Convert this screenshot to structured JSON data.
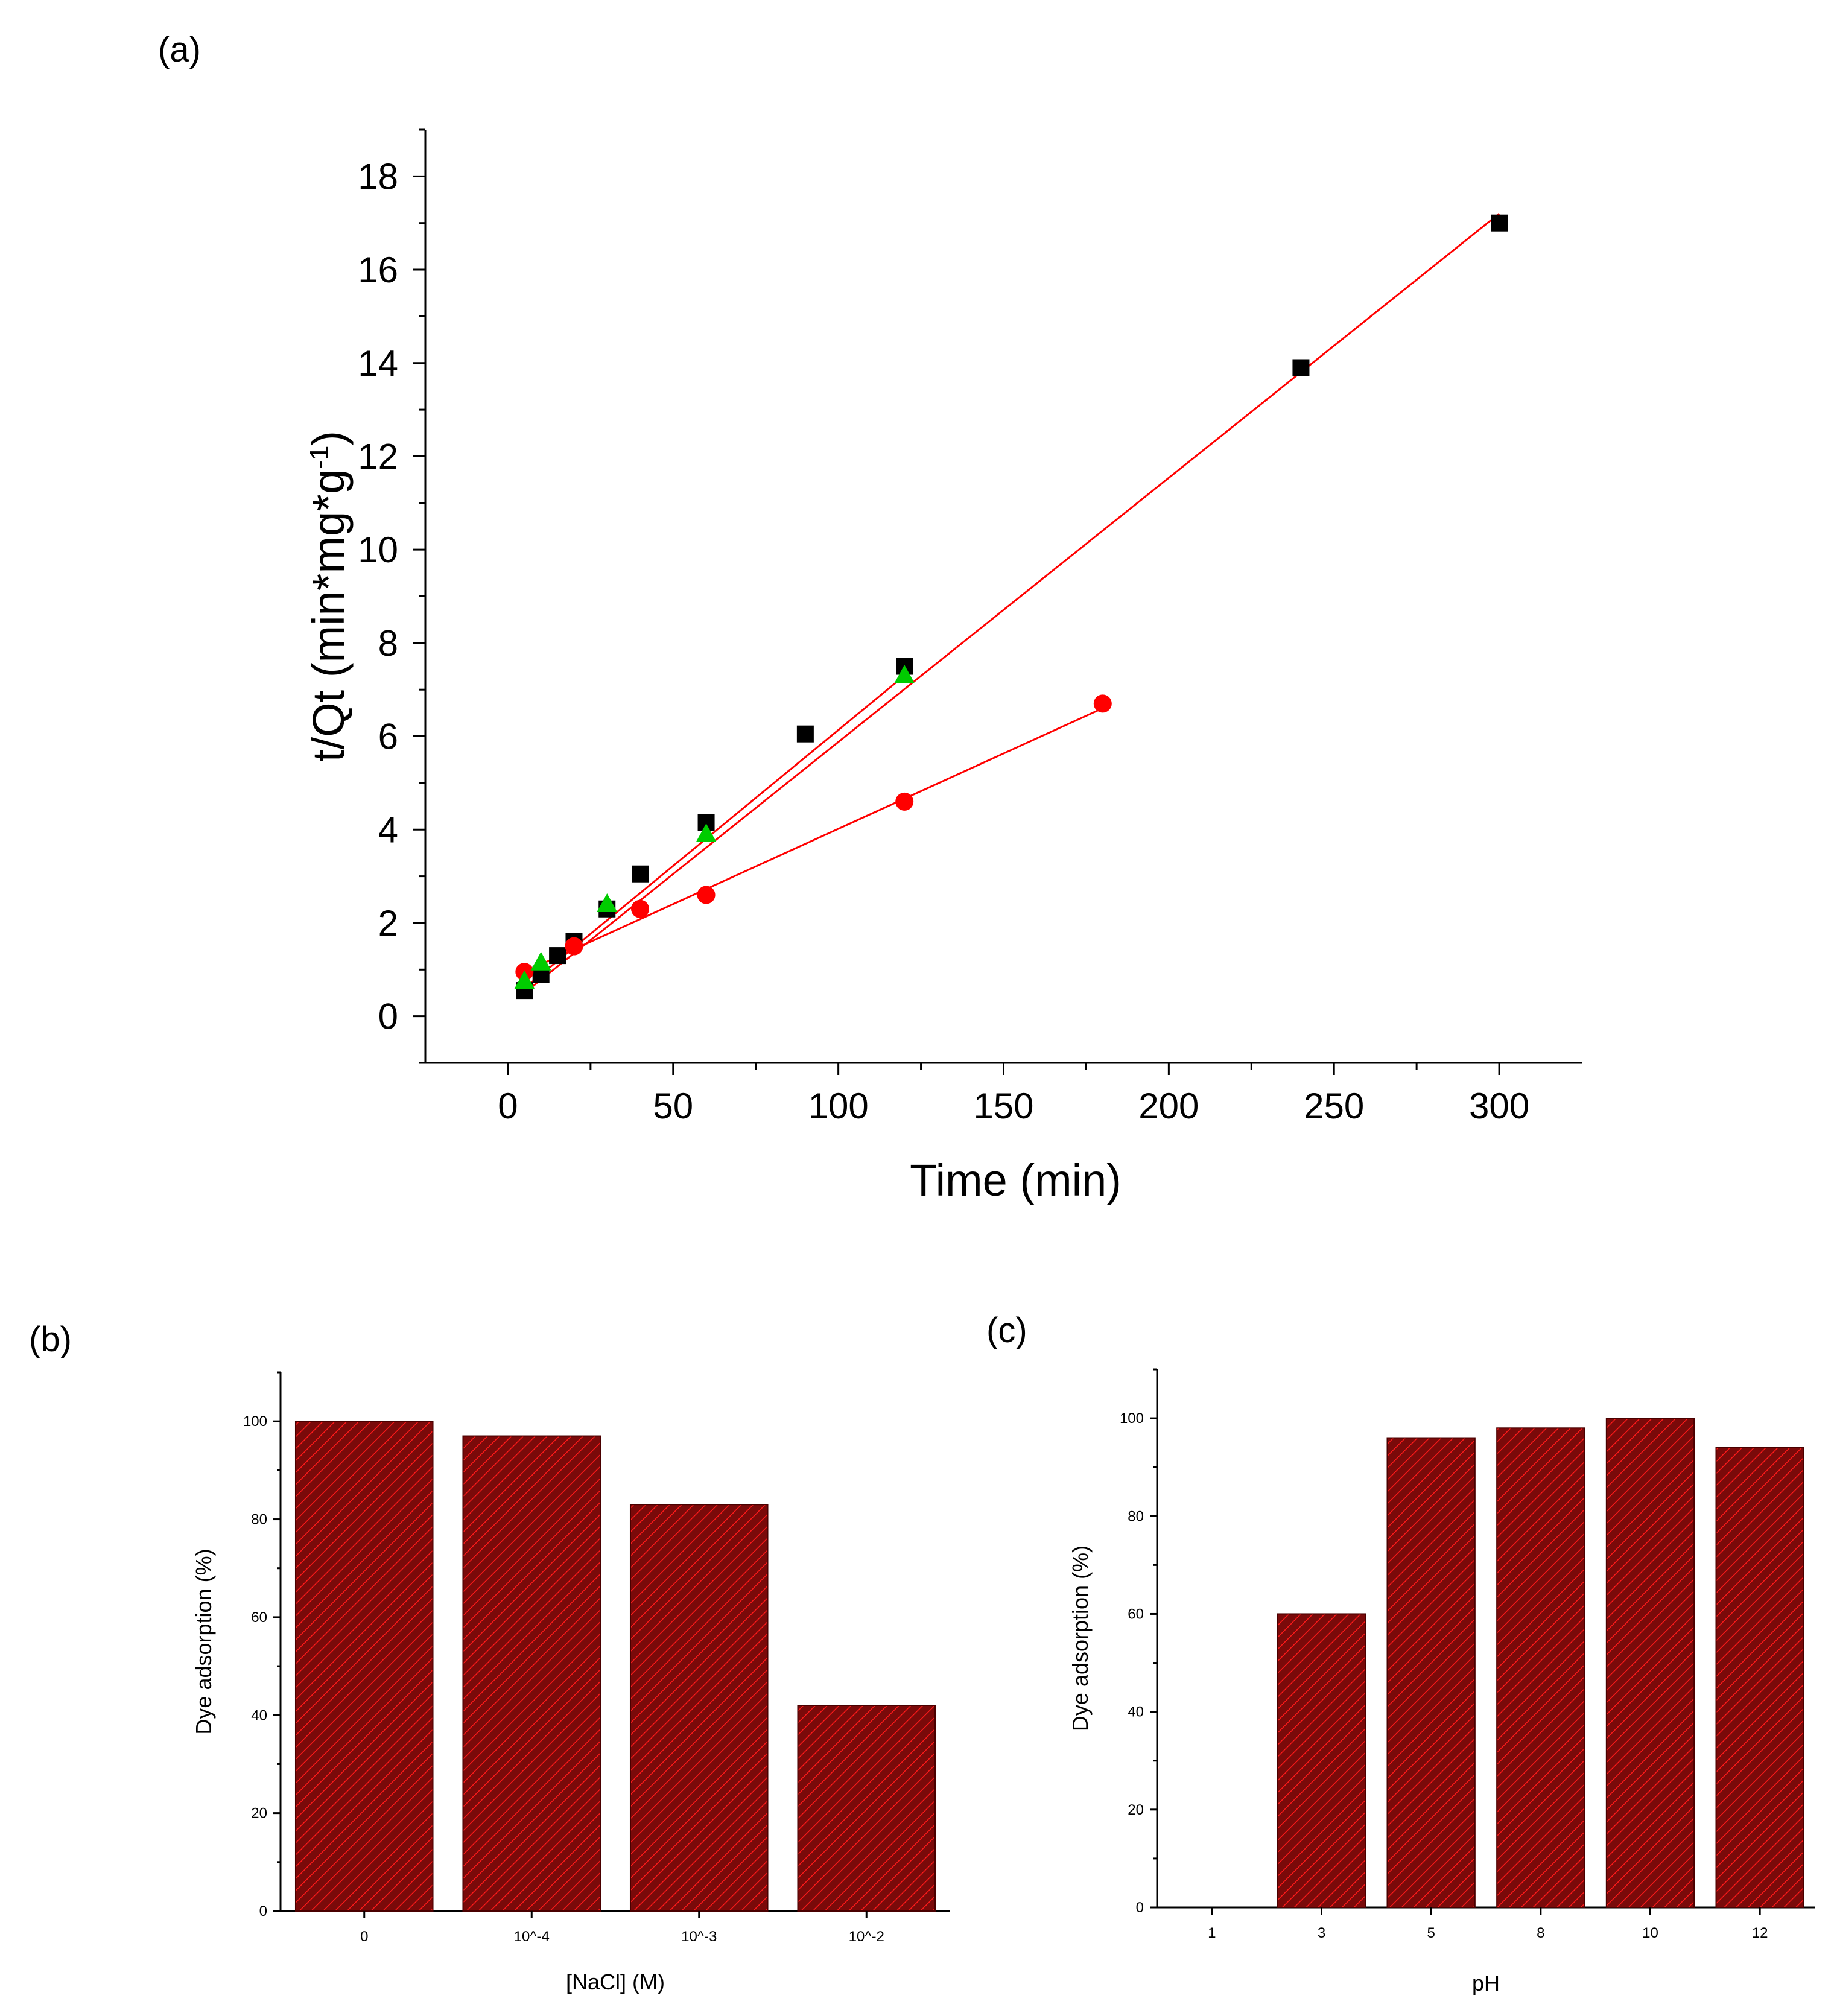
{
  "panels": {
    "a": "(a)",
    "b": "(b)",
    "c": "(c)"
  },
  "chart_data": [
    {
      "id": "a",
      "type": "scatter",
      "title": "",
      "xlabel": "Time (min)",
      "ylabel": "t/Qt (min*mg*g",
      "ylabel_sup": "-1",
      "ylabel_end": ")",
      "xlim": [
        -25,
        325
      ],
      "ylim": [
        -1,
        19
      ],
      "xticks": [
        0,
        50,
        100,
        150,
        200,
        250,
        300
      ],
      "yticks": [
        0,
        2,
        4,
        6,
        8,
        10,
        12,
        14,
        16,
        18
      ],
      "series": [
        {
          "name": "series-squares",
          "marker": "square",
          "color": "#000000",
          "x": [
            5,
            10,
            15,
            20,
            30,
            40,
            60,
            90,
            120,
            240,
            300
          ],
          "y": [
            0.55,
            0.9,
            1.3,
            1.6,
            2.3,
            3.05,
            4.15,
            6.05,
            7.5,
            13.9,
            17.0
          ],
          "fit": {
            "x": [
              5,
              300
            ],
            "y": [
              0.5,
              17.2
            ],
            "color": "#ff0000"
          }
        },
        {
          "name": "series-circles",
          "marker": "circle",
          "color": "#ff0000",
          "x": [
            5,
            20,
            40,
            60,
            120,
            180
          ],
          "y": [
            0.95,
            1.5,
            2.3,
            2.6,
            4.6,
            6.7
          ],
          "fit": {
            "x": [
              5,
              180
            ],
            "y": [
              0.95,
              6.6
            ],
            "color": "#ff0000"
          }
        },
        {
          "name": "series-triangles",
          "marker": "triangle",
          "color": "#00cc00",
          "x": [
            5,
            10,
            30,
            60,
            120
          ],
          "y": [
            0.75,
            1.15,
            2.4,
            3.9,
            7.3
          ],
          "fit": {
            "x": [
              5,
              120
            ],
            "y": [
              0.6,
              7.3
            ],
            "color": "#ff0000"
          }
        }
      ]
    },
    {
      "id": "b",
      "type": "bar",
      "title": "",
      "xlabel": "[NaCl] (M)",
      "ylabel": "Dye adsorption (%)",
      "categories": [
        "0",
        "10^-4",
        "10^-3",
        "10^-2"
      ],
      "values": [
        100,
        97,
        83,
        42
      ],
      "ylim": [
        0,
        110
      ],
      "yticks": [
        0,
        20,
        40,
        60,
        80,
        100
      ],
      "color": "#8b0a0a"
    },
    {
      "id": "c",
      "type": "bar",
      "title": "",
      "xlabel": "pH",
      "ylabel": "Dye adsorption (%)",
      "categories": [
        "1",
        "3",
        "5",
        "8",
        "10",
        "12"
      ],
      "values": [
        0,
        60,
        96,
        98,
        100,
        94
      ],
      "ylim": [
        0,
        110
      ],
      "yticks": [
        0,
        20,
        40,
        60,
        80,
        100
      ],
      "color": "#8b0a0a"
    }
  ]
}
